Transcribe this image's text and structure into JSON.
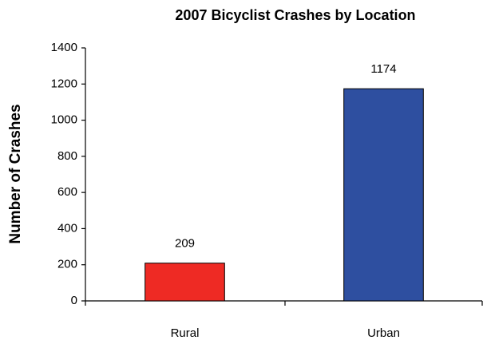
{
  "chart_data": {
    "type": "bar",
    "title": "2007 Bicyclist Crashes by Location",
    "y_label": "Number of Crashes",
    "categories": [
      "Rural",
      "Urban"
    ],
    "values": [
      209,
      1174
    ],
    "colors": [
      "#ee2a24",
      "#2e4fa0"
    ],
    "ylim": [
      0,
      1400
    ],
    "yticks": [
      0,
      200,
      400,
      600,
      800,
      1000,
      1200,
      1400
    ],
    "grid": false
  }
}
